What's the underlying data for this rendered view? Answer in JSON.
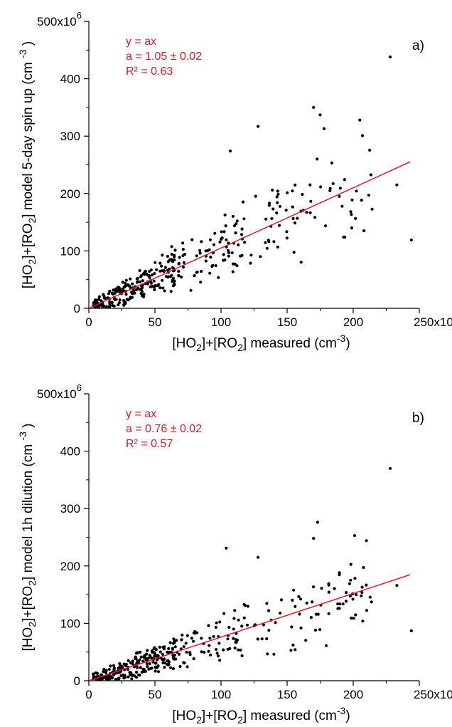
{
  "chart_data": [
    {
      "type": "scatter",
      "panel_label": "a)",
      "xlabel": {
        "pre": "[HO",
        "s1": "2",
        "mid": "]+[RO",
        "s2": "2",
        "post": "] measured (cm",
        "sup": "-3",
        "end": ")"
      },
      "ylabel": {
        "pre": "[HO",
        "s1": "2",
        "mid": "]+[RO",
        "s2": "2",
        "post": "] model 5-day spin up  (cm ",
        "sup": "-3",
        "end": " )"
      },
      "xlim": [
        0,
        250000000
      ],
      "ylim": [
        0,
        500000000
      ],
      "x_ticks": [
        0,
        50,
        100,
        150,
        200
      ],
      "x_tick_labels": [
        "0",
        "50",
        "100",
        "150",
        "200"
      ],
      "x_top_label": {
        "base": "250x10",
        "exp": "6"
      },
      "y_ticks": [
        0,
        100,
        200,
        300,
        400
      ],
      "y_tick_labels": [
        "0",
        "100",
        "200",
        "300",
        "400"
      ],
      "y_top_label": {
        "base": "500x10",
        "exp": "6"
      },
      "annotation": [
        "y = ax",
        "a = 1.05 ± 0.02",
        "R² = 0.63"
      ],
      "fit": {
        "slope": 1.05,
        "x_range": [
          0,
          243000000
        ]
      },
      "colors": {
        "points": "#000000",
        "fit_line": "#e31a1c",
        "annotation": "#e31a1c"
      },
      "outliers": [
        [
          228,
          438
        ],
        [
          175,
          337
        ],
        [
          170,
          350
        ],
        [
          128,
          317
        ],
        [
          205,
          328
        ],
        [
          178,
          313
        ],
        [
          107,
          274
        ],
        [
          233,
          215
        ],
        [
          244,
          119
        ]
      ],
      "seed": 7
    },
    {
      "type": "scatter",
      "panel_label": "b)",
      "xlabel": {
        "pre": "[HO",
        "s1": "2",
        "mid": "]+[RO",
        "s2": "2",
        "post": "] measured (cm",
        "sup": "-3",
        "end": ")"
      },
      "ylabel": {
        "pre": "[HO",
        "s1": "2",
        "mid": "]+[RO",
        "s2": "2",
        "post": "] model 1h dilution (cm ",
        "sup": "-3",
        "end": " )"
      },
      "xlim": [
        0,
        250000000
      ],
      "ylim": [
        0,
        500000000
      ],
      "x_ticks": [
        0,
        50,
        100,
        150,
        200
      ],
      "x_tick_labels": [
        "0",
        "50",
        "100",
        "150",
        "200"
      ],
      "x_top_label": {
        "base": "250x10",
        "exp": "6"
      },
      "y_ticks": [
        0,
        100,
        200,
        300,
        400
      ],
      "y_tick_labels": [
        "0",
        "100",
        "200",
        "300",
        "400"
      ],
      "y_top_label": {
        "base": "500x10",
        "exp": "6"
      },
      "annotation": [
        "y = ax",
        "a = 0.76 ± 0.02",
        "R² = 0.57"
      ],
      "fit": {
        "slope": 0.76,
        "x_range": [
          0,
          243000000
        ]
      },
      "colors": {
        "points": "#000000",
        "fit_line": "#e31a1c",
        "annotation": "#e31a1c"
      },
      "outliers": [
        [
          228,
          370
        ],
        [
          173,
          276
        ],
        [
          170,
          248
        ],
        [
          104,
          231
        ],
        [
          128,
          215
        ],
        [
          201,
          253
        ],
        [
          210,
          244
        ],
        [
          233,
          166
        ],
        [
          244,
          87
        ]
      ],
      "seed": 13
    }
  ]
}
